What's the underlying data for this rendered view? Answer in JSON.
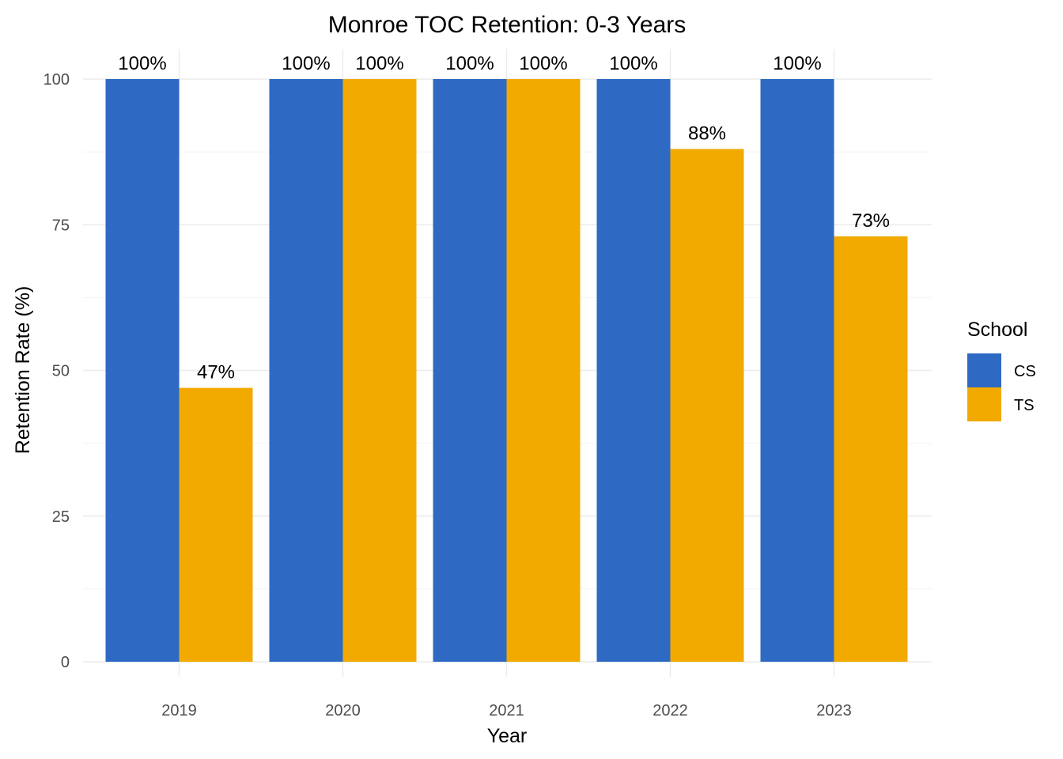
{
  "chart_data": {
    "type": "bar",
    "title": "Monroe TOC Retention: 0-3 Years",
    "xlabel": "Year",
    "ylabel": "Retention Rate (%)",
    "categories": [
      "2019",
      "2020",
      "2021",
      "2022",
      "2023"
    ],
    "series": [
      {
        "name": "CS",
        "color": "#2e69c4",
        "values": [
          100,
          100,
          100,
          100,
          100
        ],
        "labels": [
          "100%",
          "100%",
          "100%",
          "100%",
          "100%"
        ]
      },
      {
        "name": "TS",
        "color": "#f2aa00",
        "values": [
          47,
          100,
          100,
          88,
          73
        ],
        "labels": [
          "47%",
          "100%",
          "100%",
          "88%",
          "73%"
        ]
      }
    ],
    "ylim": [
      0,
      100
    ],
    "yticks": [
      0,
      25,
      50,
      75,
      100
    ],
    "ytick_labels": [
      "0",
      "25",
      "50",
      "75",
      "100"
    ],
    "grid": true,
    "legend": {
      "title": "School",
      "position": "right"
    }
  }
}
